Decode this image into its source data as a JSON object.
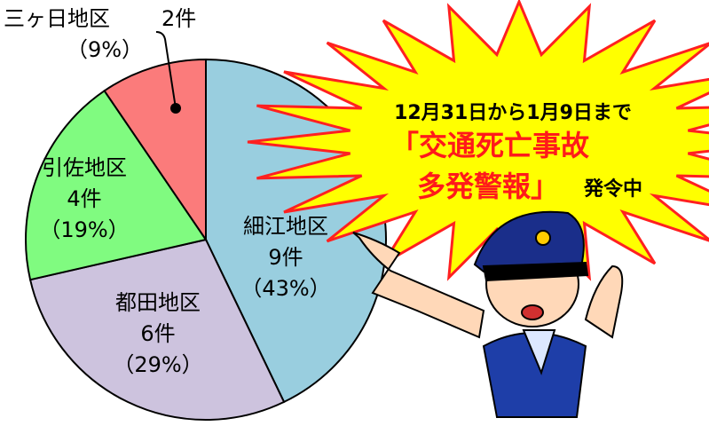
{
  "chart_data": {
    "type": "pie",
    "categories": [
      "細江地区",
      "都田地区",
      "引佐地区",
      "三ヶ日地区"
    ],
    "values": [
      9,
      6,
      4,
      2
    ],
    "value_labels": [
      "9件",
      "6件",
      "4件",
      "2件"
    ],
    "percents": [
      43,
      29,
      19,
      9
    ],
    "percent_labels": [
      "（43%）",
      "（29%）",
      "（19%）",
      "（9%）"
    ],
    "colors": [
      "#99cedf",
      "#cdc3de",
      "#80fb80",
      "#fb7b7b"
    ]
  },
  "banner": {
    "period": "12月31日から1月9日まで",
    "alert_line1": "「交通死亡事故",
    "alert_line2": "多発警報」",
    "status": "発令中"
  }
}
